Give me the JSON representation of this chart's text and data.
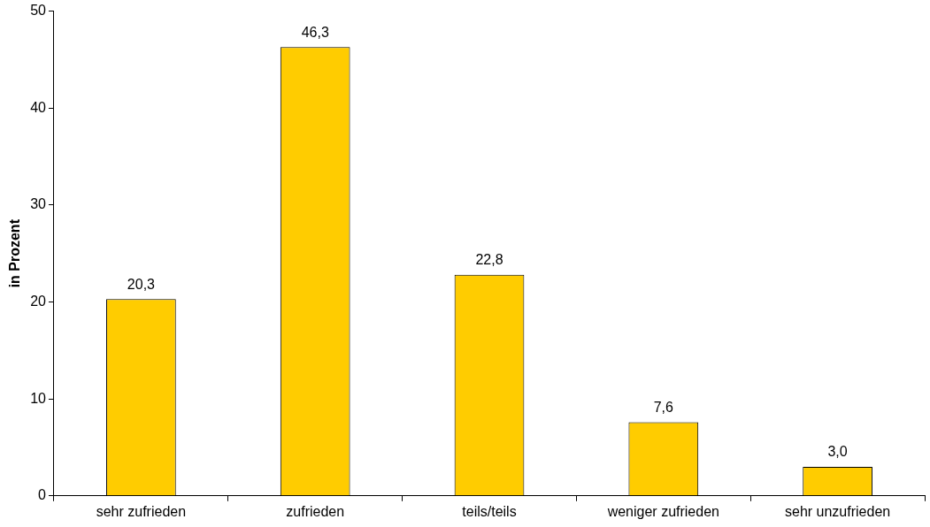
{
  "chart_data": {
    "type": "bar",
    "ylabel": "in Prozent",
    "categories": [
      "sehr zufrieden",
      "zufrieden",
      "teils/teils",
      "weniger zufrieden",
      "sehr unzufrieden"
    ],
    "values": [
      20.3,
      46.3,
      22.8,
      7.6,
      3.0
    ],
    "value_labels": [
      "20,3",
      "46,3",
      "22,8",
      "7,6",
      "3,0"
    ],
    "color": "#ffcc00",
    "ylim": [
      0,
      50
    ],
    "yticks": [
      0,
      10,
      20,
      30,
      40,
      50
    ],
    "grid": false,
    "legend": false
  }
}
